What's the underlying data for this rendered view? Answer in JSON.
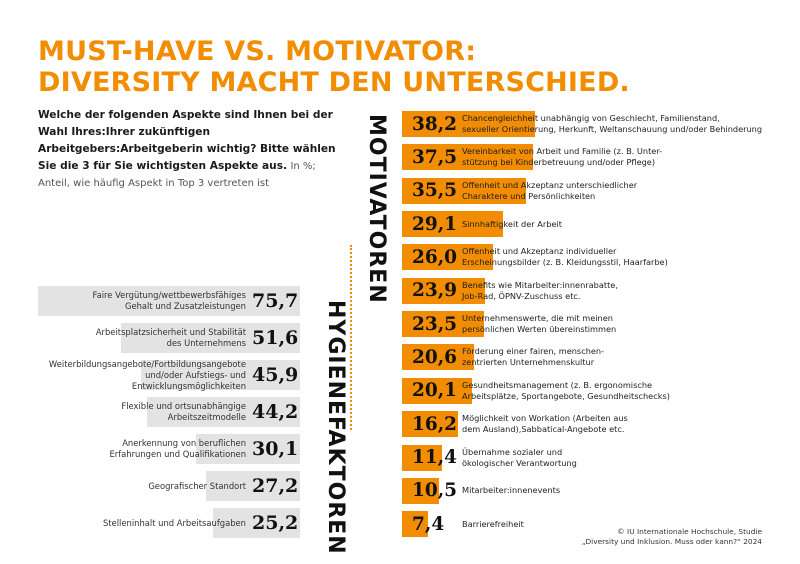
{
  "title_line1": "MUST-HAVE VS. MOTIVATOR:",
  "title_line2": "DIVERSITY MACHT DEN UNTERSCHIED.",
  "question": "Welche der folgenden Aspekte sind Ihnen bei der Wahl Ihres:Ihrer zukünftigen Arbeitgebers:Arbeitgeberin wichtig? Bitte wählen Sie die 3 für Sie wichtigsten Aspekte aus.",
  "note": "In %; Anteil, wie häufig Aspekt in Top 3 vertreten ist",
  "source_line1": "© IU Internationale Hochschule, Studie",
  "source_line2": "„Diversity und Inklusion. Muss oder kann?“ 2024",
  "colors": {
    "accent": "#f28c00",
    "hygiene_bar": "#e3e3e3"
  },
  "chart_data": [
    {
      "type": "bar",
      "title": "HYGIENEFAKTOREN",
      "unit": "%",
      "xlim": [
        0,
        100
      ],
      "categories": [
        "Faire Vergütung/wettbewerbsfähiges\nGehalt und Zusatzleistungen",
        "Arbeitsplatzsicherheit und Stabilität\ndes Unternehmens",
        "Weiterbildungsangebote/Fortbildungsangebote\nund/oder Aufstiegs- und Entwicklungsmöglichkeiten",
        "Flexible und ortsunabhängige\nArbeitszeitmodelle",
        "Anerkennung von beruflichen\nErfahrungen und Qualifikationen",
        "Geografischer Standort",
        "Stelleninhalt und Arbeitsaufgaben"
      ],
      "values": [
        75.7,
        51.6,
        45.9,
        44.2,
        30.1,
        27.2,
        25.2
      ],
      "value_labels": [
        "75,7",
        "51,6",
        "45,9",
        "44,2",
        "30,1",
        "27,2",
        "25,2"
      ]
    },
    {
      "type": "bar",
      "title": "MOTIVATOREN",
      "unit": "%",
      "xlim": [
        0,
        100
      ],
      "categories": [
        "Chancengleichheit unabhängig von Geschlecht, Familienstand,\nsexueller Orientierung, Herkunft, Weltanschauung und/oder Behinderung",
        "Vereinbarkeit von Arbeit und Familie (z. B. Unter-\nstützung bei Kinderbetreuung und/oder Pflege)",
        "Offenheit und Akzeptanz unterschiedlicher\nCharaktere und Persönlichkeiten",
        "Sinnhaftigkeit der Arbeit",
        "Offenheit und Akzeptanz individueller\nErscheinungsbilder (z. B. Kleidungsstil, Haarfarbe)",
        "Benefits wie Mitarbeiter:innenrabatte,\nJob-Rad, ÖPNV-Zuschuss etc.",
        "Unternehmenswerte, die mit meinen\npersönlichen Werten übereinstimmen",
        "Förderung einer fairen, menschen-\nzentrierten Unternehmenskultur",
        "Gesundheitsmanagement (z. B. ergonomische\nArbeitsplätze, Sportangebote, Gesundheitschecks)",
        "Möglichkeit von Workation (Arbeiten aus\ndem Ausland),Sabbatical-Angebote etc.",
        "Übernahme sozialer und\nökologischer Verantwortung",
        "Mitarbeiter:innenevents",
        "Barrierefreiheit"
      ],
      "values": [
        38.2,
        37.5,
        35.5,
        29.1,
        26.0,
        23.9,
        23.5,
        20.6,
        20.1,
        16.2,
        11.4,
        10.5,
        7.4
      ],
      "value_labels": [
        "38,2",
        "37,5",
        "35,5",
        "29,1",
        "26,0",
        "23,9",
        "23,5",
        "20,6",
        "20,1",
        "16,2",
        "11,4",
        "10,5",
        "7,4"
      ]
    }
  ]
}
